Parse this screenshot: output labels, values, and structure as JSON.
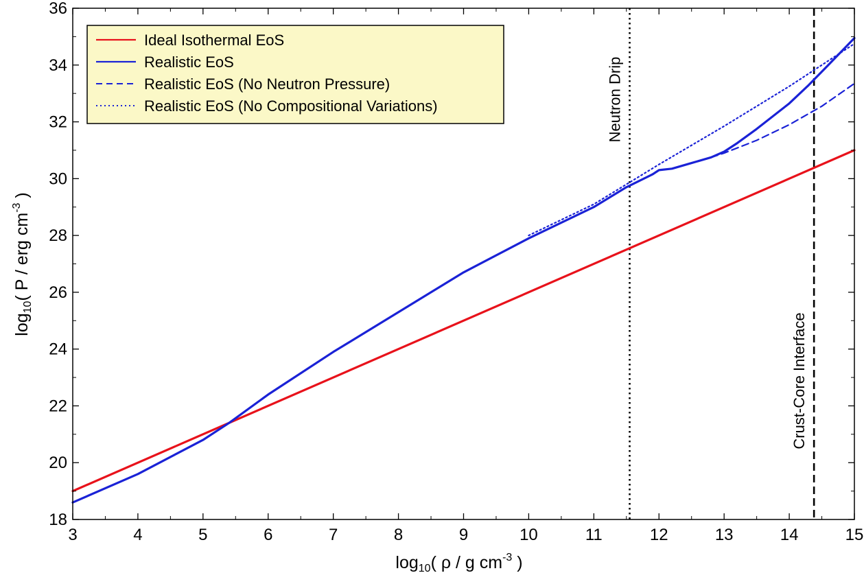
{
  "chart_data": {
    "type": "line",
    "xlim": [
      3,
      15
    ],
    "ylim": [
      18,
      36
    ],
    "x_ticks": [
      3,
      4,
      5,
      6,
      7,
      8,
      9,
      10,
      11,
      12,
      13,
      14,
      15
    ],
    "y_ticks": [
      18,
      20,
      22,
      24,
      26,
      28,
      30,
      32,
      34,
      36
    ],
    "xlabel": {
      "prefix": "log",
      "sub": "10",
      "mid": "( ρ / g cm",
      "sup": "-3",
      "suffix": " )"
    },
    "ylabel": {
      "prefix": "log",
      "sub": "10",
      "mid": "( P / erg cm",
      "sup": "-3",
      "suffix": " )"
    },
    "grid": false,
    "legend_position": "top-left",
    "series": [
      {
        "name": "Ideal Isothermal EoS",
        "color": "#e8121b",
        "style": "solid",
        "x": [
          3,
          15
        ],
        "y": [
          19.0,
          31.0
        ]
      },
      {
        "name": "Realistic EoS",
        "color": "#1a22d6",
        "style": "solid",
        "x": [
          3,
          4,
          5,
          5.4,
          6,
          7,
          8,
          9,
          10,
          11,
          11.5,
          11.9,
          12,
          12.2,
          12.5,
          12.8,
          13,
          13.2,
          13.5,
          14,
          14.3,
          14.6,
          15
        ],
        "y": [
          18.6,
          19.6,
          20.8,
          21.4,
          22.4,
          23.9,
          25.3,
          26.7,
          27.9,
          29.0,
          29.7,
          30.15,
          30.3,
          30.35,
          30.55,
          30.75,
          30.95,
          31.25,
          31.75,
          32.65,
          33.3,
          34.0,
          34.95
        ]
      },
      {
        "name": "Realistic EoS (No Neutron Pressure)",
        "color": "#1a22d6",
        "style": "dashed",
        "x": [
          12.8,
          13,
          13.5,
          14,
          14.5,
          15
        ],
        "y": [
          30.75,
          30.9,
          31.35,
          31.9,
          32.55,
          33.35
        ]
      },
      {
        "name": "Realistic EoS (No Compositional Variations)",
        "color": "#1a22d6",
        "style": "dotted",
        "x": [
          10,
          11,
          11.5,
          12,
          13,
          14,
          15
        ],
        "y": [
          28.0,
          29.1,
          29.8,
          30.5,
          31.85,
          33.25,
          34.75
        ]
      }
    ],
    "vlines": [
      {
        "x": 11.55,
        "style": "dotted",
        "label": "Neutron Drip"
      },
      {
        "x": 14.38,
        "style": "dashed",
        "label": "Crust-Core Interface"
      }
    ]
  }
}
